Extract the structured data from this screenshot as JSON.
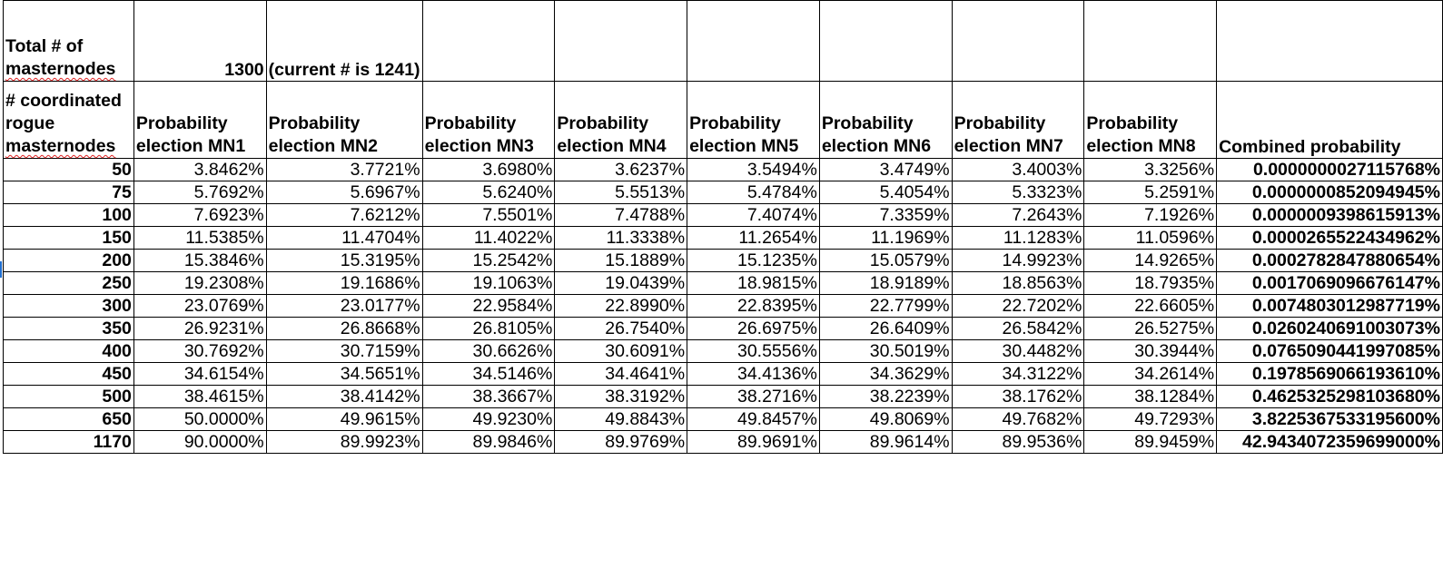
{
  "sheet": {
    "total_label": "Total # of masternodes",
    "total_label_word": "masternodes",
    "total_label_prefix": "Total # of",
    "total_value": "1300",
    "total_note": "(current # is 1241)",
    "rogue_label_line1": "# coordinated",
    "rogue_label_line2": "rogue",
    "rogue_label_line3": "masternodes",
    "headers": [
      "Probability election MN1",
      "Probability election MN2",
      "Probability election MN3",
      "Probability election MN4",
      "Probability election MN5",
      "Probability election MN6",
      "Probability election MN7",
      "Probability election MN8"
    ],
    "combined_header": "Combined probability",
    "rows": [
      {
        "n": "50",
        "p": [
          "3.8462%",
          "3.7721%",
          "3.6980%",
          "3.6237%",
          "3.5494%",
          "3.4749%",
          "3.4003%",
          "3.3256%"
        ],
        "combined": "0.0000000027115768%"
      },
      {
        "n": "75",
        "p": [
          "5.7692%",
          "5.6967%",
          "5.6240%",
          "5.5513%",
          "5.4784%",
          "5.4054%",
          "5.3323%",
          "5.2591%"
        ],
        "combined": "0.0000000852094945%"
      },
      {
        "n": "100",
        "p": [
          "7.6923%",
          "7.6212%",
          "7.5501%",
          "7.4788%",
          "7.4074%",
          "7.3359%",
          "7.2643%",
          "7.1926%"
        ],
        "combined": "0.0000009398615913%"
      },
      {
        "n": "150",
        "p": [
          "11.5385%",
          "11.4704%",
          "11.4022%",
          "11.3338%",
          "11.2654%",
          "11.1969%",
          "11.1283%",
          "11.0596%"
        ],
        "combined": "0.0000265522434962%"
      },
      {
        "n": "200",
        "p": [
          "15.3846%",
          "15.3195%",
          "15.2542%",
          "15.1889%",
          "15.1235%",
          "15.0579%",
          "14.9923%",
          "14.9265%"
        ],
        "combined": "0.0002782847880654%"
      },
      {
        "n": "250",
        "p": [
          "19.2308%",
          "19.1686%",
          "19.1063%",
          "19.0439%",
          "18.9815%",
          "18.9189%",
          "18.8563%",
          "18.7935%"
        ],
        "combined": "0.0017069096676147%"
      },
      {
        "n": "300",
        "p": [
          "23.0769%",
          "23.0177%",
          "22.9584%",
          "22.8990%",
          "22.8395%",
          "22.7799%",
          "22.7202%",
          "22.6605%"
        ],
        "combined": "0.0074803012987719%"
      },
      {
        "n": "350",
        "p": [
          "26.9231%",
          "26.8668%",
          "26.8105%",
          "26.7540%",
          "26.6975%",
          "26.6409%",
          "26.5842%",
          "26.5275%"
        ],
        "combined": "0.0260240691003073%"
      },
      {
        "n": "400",
        "p": [
          "30.7692%",
          "30.7159%",
          "30.6626%",
          "30.6091%",
          "30.5556%",
          "30.5019%",
          "30.4482%",
          "30.3944%"
        ],
        "combined": "0.0765090441997085%"
      },
      {
        "n": "450",
        "p": [
          "34.6154%",
          "34.5651%",
          "34.5146%",
          "34.4641%",
          "34.4136%",
          "34.3629%",
          "34.3122%",
          "34.2614%"
        ],
        "combined": "0.1978569066193610%"
      },
      {
        "n": "500",
        "p": [
          "38.4615%",
          "38.4142%",
          "38.3667%",
          "38.3192%",
          "38.2716%",
          "38.2239%",
          "38.1762%",
          "38.1284%"
        ],
        "combined": "0.4625325298103680%"
      },
      {
        "n": "650",
        "p": [
          "50.0000%",
          "49.9615%",
          "49.9230%",
          "49.8843%",
          "49.8457%",
          "49.8069%",
          "49.7682%",
          "49.7293%"
        ],
        "combined": "3.8225367533195600%"
      },
      {
        "n": "1170",
        "p": [
          "90.0000%",
          "89.9923%",
          "89.9846%",
          "89.9769%",
          "89.9691%",
          "89.9614%",
          "89.9536%",
          "89.9459%"
        ],
        "combined": "42.9434072359699000%"
      }
    ]
  }
}
